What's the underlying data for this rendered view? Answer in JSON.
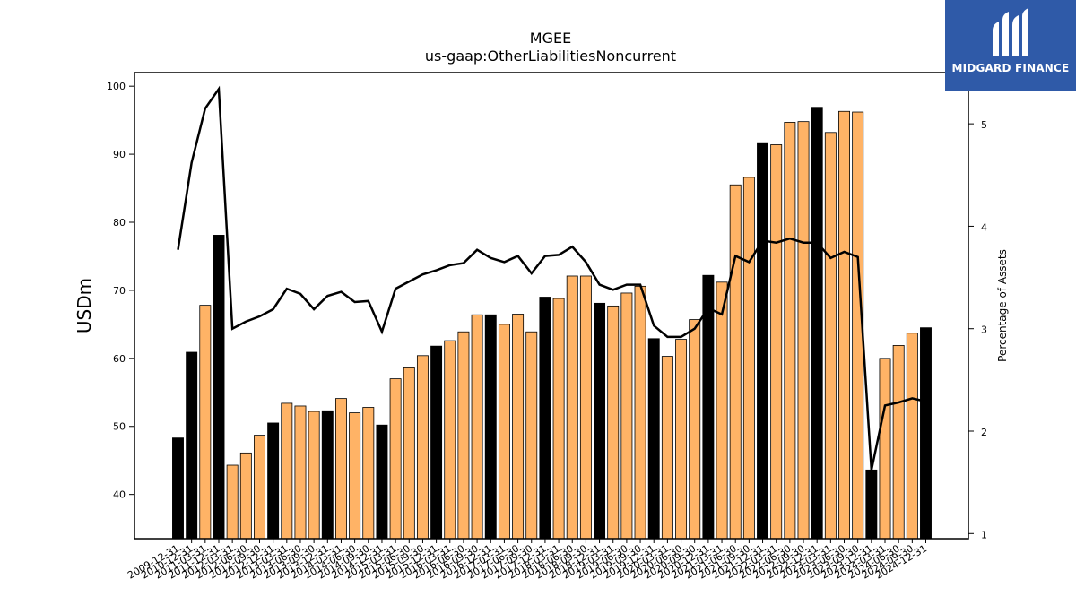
{
  "chart_data": {
    "type": "bar",
    "title": "MGEE",
    "subtitle": "us-gaap:OtherLiabilitiesNoncurrent",
    "ylabel": "USDm",
    "y2label": "Percentage of Assets",
    "ylim": [
      33.5,
      102
    ],
    "y2lim": [
      0.95,
      5.5
    ],
    "yticks": [
      40,
      50,
      60,
      70,
      80,
      90,
      100
    ],
    "y2ticks": [
      1,
      2,
      3,
      4,
      5
    ],
    "colors": {
      "annual": "#000000",
      "quarter": "#ffb366",
      "line": "#000000"
    },
    "categories": [
      "2009-12-31",
      "2010-12-31",
      "2011-03-31",
      "2011-12-31",
      "2012-03-31",
      "2012-06-30",
      "2012-09-30",
      "2012-12-31",
      "2013-03-31",
      "2013-06-30",
      "2013-09-30",
      "2013-12-31",
      "2014-03-31",
      "2014-06-30",
      "2014-09-30",
      "2014-12-31",
      "2015-03-31",
      "2015-06-30",
      "2015-09-30",
      "2015-12-31",
      "2016-03-31",
      "2016-06-30",
      "2016-09-30",
      "2016-12-31",
      "2017-03-31",
      "2017-06-30",
      "2017-09-30",
      "2017-12-31",
      "2018-03-31",
      "2018-06-30",
      "2018-09-30",
      "2018-12-31",
      "2019-03-31",
      "2019-06-30",
      "2019-09-30",
      "2019-12-31",
      "2020-03-31",
      "2020-06-30",
      "2020-09-30",
      "2020-12-31",
      "2021-03-31",
      "2021-06-30",
      "2021-09-30",
      "2021-12-31",
      "2022-03-31",
      "2022-06-30",
      "2022-09-30",
      "2022-12-31",
      "2023-03-31",
      "2023-06-30",
      "2023-09-30",
      "2023-12-31",
      "2024-03-31",
      "2024-06-30",
      "2024-09-30",
      "2024-12-31"
    ],
    "values": [
      48.3,
      60.9,
      67.8,
      78.1,
      44.3,
      46.1,
      48.7,
      50.5,
      53.4,
      53.0,
      52.2,
      52.3,
      54.1,
      52.0,
      52.8,
      50.2,
      57.0,
      58.6,
      60.4,
      61.8,
      62.6,
      63.9,
      66.4,
      66.4,
      65.0,
      66.5,
      63.9,
      69.0,
      68.8,
      72.1,
      72.1,
      68.1,
      67.7,
      69.6,
      70.6,
      62.9,
      60.3,
      62.8,
      65.7,
      72.2,
      71.2,
      85.5,
      86.6,
      91.7,
      91.4,
      94.7,
      94.8,
      96.9,
      93.2,
      96.3,
      96.2,
      43.6,
      60.0,
      61.9,
      63.7,
      64.5
    ],
    "annual": [
      true,
      true,
      false,
      true,
      false,
      false,
      false,
      true,
      false,
      false,
      false,
      true,
      false,
      false,
      false,
      true,
      false,
      false,
      false,
      true,
      false,
      false,
      false,
      true,
      false,
      false,
      false,
      true,
      false,
      false,
      false,
      true,
      false,
      false,
      false,
      true,
      false,
      false,
      false,
      true,
      false,
      false,
      false,
      true,
      false,
      false,
      false,
      true,
      false,
      false,
      false,
      true,
      false,
      false,
      false,
      true
    ],
    "pct_assets": [
      3.77,
      4.62,
      5.15,
      5.34,
      3.0,
      3.07,
      3.12,
      3.19,
      3.39,
      3.34,
      3.19,
      3.32,
      3.36,
      3.26,
      3.27,
      2.97,
      3.39,
      3.46,
      3.53,
      3.57,
      3.62,
      3.64,
      3.77,
      3.69,
      3.65,
      3.71,
      3.54,
      3.71,
      3.72,
      3.8,
      3.65,
      3.43,
      3.38,
      3.43,
      3.43,
      3.03,
      2.92,
      2.92,
      3.0,
      3.2,
      3.14,
      3.71,
      3.65,
      3.86,
      3.84,
      3.88,
      3.84,
      3.84,
      3.69,
      3.75,
      3.7,
      1.62,
      2.25,
      2.28,
      2.32,
      2.29
    ]
  },
  "logo": {
    "text": "MIDGARD FINANCE"
  }
}
